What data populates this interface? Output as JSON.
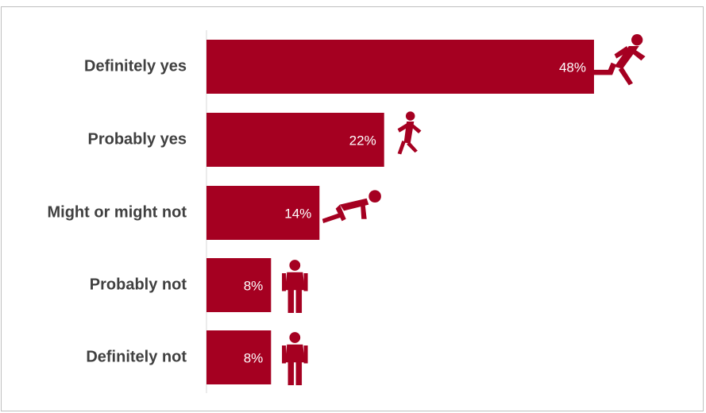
{
  "chart_data": {
    "type": "bar",
    "orientation": "horizontal",
    "categories": [
      "Definitely yes",
      "Probably yes",
      "Might or might not",
      "Probably not",
      "Definitely not"
    ],
    "values": [
      48,
      22,
      14,
      8,
      8
    ],
    "value_labels": [
      "48%",
      "22%",
      "14%",
      "8%",
      "8%"
    ],
    "unit": "%",
    "xlim": [
      0,
      60
    ],
    "grid": false,
    "legend": "none",
    "bar_color": "#a50021",
    "icons": [
      "running-person-icon",
      "jogging-person-icon",
      "crouching-start-person-icon",
      "standing-person-icon",
      "standing-person-icon"
    ]
  }
}
